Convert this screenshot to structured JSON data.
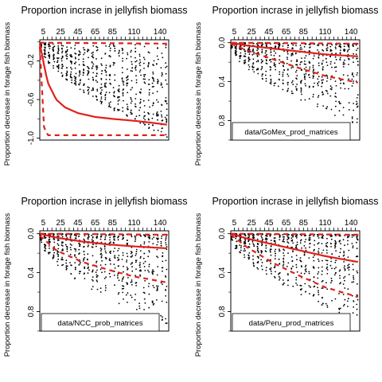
{
  "colors": {
    "mean_line": "#e0201b",
    "quantile_line": "#e0201b",
    "points": "#000000",
    "frame": "#000000"
  },
  "chart_data": [
    {
      "type": "scatter",
      "title": "Proportion incrase in jellyfish biomass",
      "ylabel": "Proportion decrease in forage fish biomass",
      "x_ticks": [
        "5",
        "25",
        "45",
        "65",
        "85",
        "110",
        "140"
      ],
      "x_tick_values": [
        5,
        25,
        45,
        65,
        85,
        110,
        140
      ],
      "xlim": [
        1,
        150
      ],
      "y_ticks": [
        "-0.2",
        "-0.6",
        "-1.0"
      ],
      "y_tick_values": [
        -0.2,
        -0.6,
        -1.0
      ],
      "ylim": [
        -1.02,
        0.02
      ],
      "legend_text": "",
      "mean": {
        "x": [
          1,
          5,
          10,
          20,
          30,
          45,
          65,
          85,
          110,
          130,
          148
        ],
        "y": [
          -0.02,
          -0.2,
          -0.42,
          -0.6,
          -0.68,
          -0.74,
          -0.78,
          -0.8,
          -0.82,
          -0.84,
          -0.86
        ]
      },
      "lower": {
        "x": [
          1,
          3,
          6,
          10,
          148
        ],
        "y": [
          -0.05,
          -0.4,
          -0.9,
          -0.97,
          -0.97
        ]
      },
      "upper": {
        "x": [
          1,
          148
        ],
        "y": [
          -0.01,
          -0.02
        ]
      },
      "cloud_lo": [
        -0.02,
        -1.0
      ],
      "cloud_hi": [
        -0.01,
        -0.03
      ]
    },
    {
      "type": "scatter",
      "title": "Proportion incrase in jellyfish biomass",
      "ylabel": "Proportion decrease in forage fish biomass",
      "x_ticks": [
        "5",
        "25",
        "45",
        "65",
        "85",
        "110",
        "140"
      ],
      "x_tick_values": [
        5,
        25,
        45,
        65,
        85,
        110,
        140
      ],
      "xlim": [
        1,
        150
      ],
      "y_ticks": [
        "0.0",
        "0.4",
        "0.8"
      ],
      "y_tick_values": [
        0.0,
        -0.4,
        -0.8
      ],
      "ylim": [
        -1.0,
        0.03
      ],
      "legend_text": "data/GoMex_prod_matrices",
      "mean": {
        "x": [
          1,
          20,
          50,
          80,
          110,
          148
        ],
        "y": [
          0.0,
          -0.03,
          -0.06,
          -0.09,
          -0.12,
          -0.14
        ]
      },
      "lower": {
        "x": [
          1,
          20,
          50,
          80,
          110,
          148
        ],
        "y": [
          -0.01,
          -0.08,
          -0.17,
          -0.26,
          -0.34,
          -0.41
        ]
      },
      "upper": {
        "x": [
          1,
          148
        ],
        "y": [
          0.0,
          -0.01
        ]
      },
      "cloud_lo": [
        -0.02,
        -0.85
      ],
      "cloud_hi": [
        0.0,
        -0.01
      ]
    },
    {
      "type": "scatter",
      "title": "Proportion incrase in jellyfish biomass",
      "ylabel": "Proportion decrease in forage fish biomass",
      "x_ticks": [
        "5",
        "25",
        "45",
        "65",
        "85",
        "110",
        "140"
      ],
      "x_tick_values": [
        5,
        25,
        45,
        65,
        85,
        110,
        140
      ],
      "xlim": [
        1,
        150
      ],
      "y_ticks": [
        "0.0",
        "0.4",
        "0.8"
      ],
      "y_tick_values": [
        0.0,
        -0.4,
        -0.8
      ],
      "ylim": [
        -1.0,
        0.03
      ],
      "legend_text": "data/NCC_prob_matrices",
      "mean": {
        "x": [
          1,
          20,
          50,
          80,
          110,
          148
        ],
        "y": [
          0.0,
          -0.04,
          -0.08,
          -0.11,
          -0.13,
          -0.15
        ]
      },
      "lower": {
        "x": [
          1,
          20,
          50,
          80,
          110,
          148
        ],
        "y": [
          -0.02,
          -0.17,
          -0.29,
          -0.37,
          -0.44,
          -0.5
        ]
      },
      "upper": {
        "x": [
          1,
          148
        ],
        "y": [
          0.0,
          -0.01
        ]
      },
      "cloud_lo": [
        -0.05,
        -0.95
      ],
      "cloud_hi": [
        0.0,
        -0.01
      ]
    },
    {
      "type": "scatter",
      "title": "Proportion incrase in jellyfish biomass",
      "ylabel": "Proportion decrease in forage fish biomass",
      "x_ticks": [
        "5",
        "25",
        "45",
        "65",
        "85",
        "110",
        "140"
      ],
      "x_tick_values": [
        5,
        25,
        45,
        65,
        85,
        110,
        140
      ],
      "xlim": [
        1,
        150
      ],
      "y_ticks": [
        "0.0",
        "0.4",
        "0.8"
      ],
      "y_tick_values": [
        0.0,
        -0.4,
        -0.8
      ],
      "ylim": [
        -1.0,
        0.03
      ],
      "legend_text": "data/Peru_prod_matrices",
      "mean": {
        "x": [
          1,
          20,
          50,
          80,
          110,
          148
        ],
        "y": [
          0.0,
          -0.05,
          -0.11,
          -0.17,
          -0.23,
          -0.29
        ]
      },
      "lower": {
        "x": [
          1,
          20,
          50,
          80,
          110,
          148
        ],
        "y": [
          -0.01,
          -0.14,
          -0.3,
          -0.43,
          -0.55,
          -0.65
        ]
      },
      "upper": {
        "x": [
          1,
          148
        ],
        "y": [
          0.0,
          -0.01
        ]
      },
      "cloud_lo": [
        -0.03,
        -0.9
      ],
      "cloud_hi": [
        0.0,
        -0.01
      ]
    }
  ]
}
